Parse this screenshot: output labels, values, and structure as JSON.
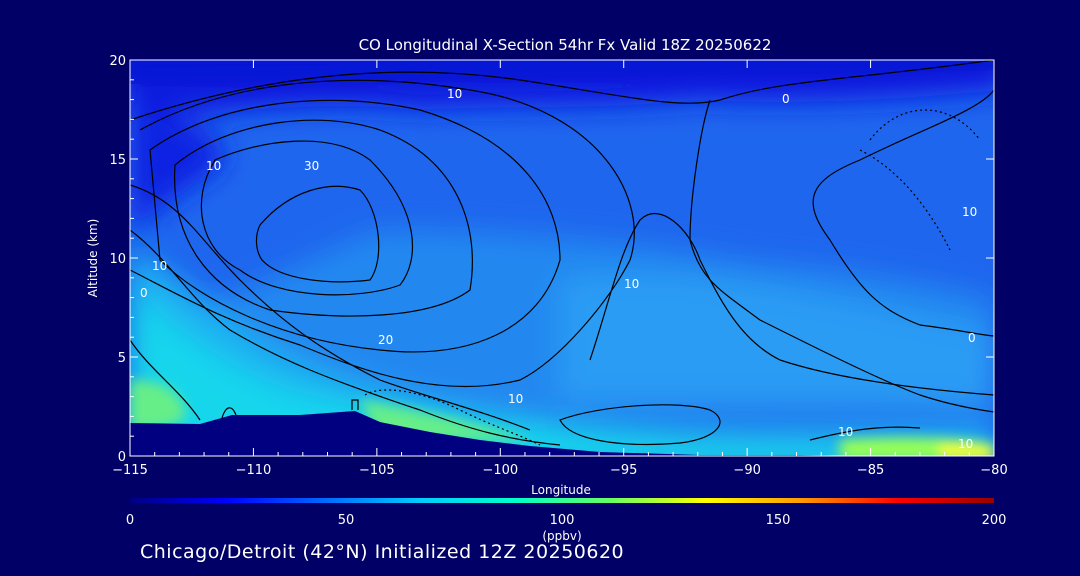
{
  "chart_data": {
    "type": "heatmap",
    "title": "CO Longitudinal X-Section 54hr  Fx Valid 18Z 20250622",
    "xlabel": "Longitude",
    "ylabel": "Altitude (km)",
    "xlim": [
      -115,
      -80
    ],
    "ylim": [
      0,
      20
    ],
    "x_ticks": [
      "-115",
      "-110",
      "-105",
      "-100",
      "-95",
      "-90",
      "-85",
      "-80"
    ],
    "y_ticks": [
      "0",
      "5",
      "10",
      "15",
      "20"
    ],
    "grid": false,
    "colorbar": {
      "range": [
        0,
        200
      ],
      "ticks": [
        "0",
        "50",
        "100",
        "150",
        "200"
      ],
      "unit_label": "(ppbv)",
      "colors": [
        "#000080",
        "#0000ff",
        "#0066ff",
        "#00ccff",
        "#00ffcc",
        "#66ff66",
        "#ffff00",
        "#ff9900",
        "#ff0000",
        "#990000"
      ]
    },
    "contour_labels": [
      "10",
      "10",
      "10",
      "10",
      "10",
      "10",
      "10",
      "10",
      "20",
      "30",
      "0",
      "0",
      "0"
    ],
    "terrain_color": "#000080"
  },
  "footer": "Chicago/Detroit (42°N) Initialized 12Z 20250620"
}
